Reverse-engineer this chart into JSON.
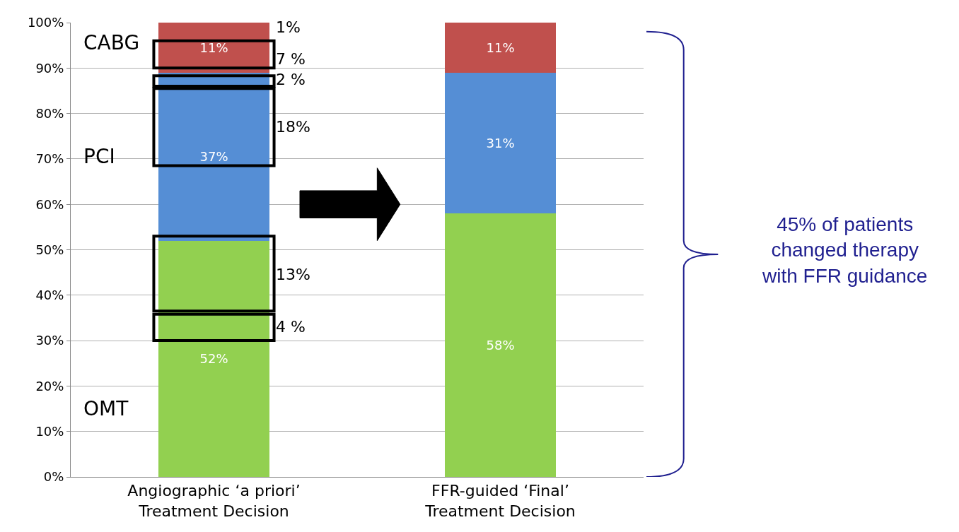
{
  "chart_data": {
    "type": "bar",
    "stacked": true,
    "categories": [
      "Angiographic ‘a priori’\nTreatment Decision",
      "FFR-guided ‘Final’\nTreatment Decision"
    ],
    "series": [
      {
        "name": "OMT",
        "color": "#92d050",
        "values": [
          52,
          58
        ],
        "value_labels": [
          "52%",
          "58%"
        ]
      },
      {
        "name": "PCI",
        "color": "#558ed5",
        "values": [
          37,
          31
        ],
        "value_labels": [
          "37%",
          "31%"
        ]
      },
      {
        "name": "CABG",
        "color": "#c0504d",
        "values": [
          11,
          11
        ],
        "value_labels": [
          "11%",
          "11%"
        ]
      }
    ],
    "ylim": [
      0,
      100
    ],
    "yticks": [
      {
        "value": 0,
        "label": "0%"
      },
      {
        "value": 10,
        "label": "10%"
      },
      {
        "value": 20,
        "label": "20%"
      },
      {
        "value": 30,
        "label": "30%"
      },
      {
        "value": 40,
        "label": "40%"
      },
      {
        "value": 50,
        "label": "50%"
      },
      {
        "value": 60,
        "label": "60%"
      },
      {
        "value": 70,
        "label": "70%"
      },
      {
        "value": 80,
        "label": "80%"
      },
      {
        "value": 90,
        "label": "90%"
      },
      {
        "value": 100,
        "label": "100%"
      }
    ],
    "grid": "y",
    "legend": false,
    "annotations": [
      "1%",
      "7 %",
      "2 %",
      "18%",
      "13%",
      "4 %",
      "45% of patients\nchanged therapy\nwith FFR guidance"
    ]
  }
}
